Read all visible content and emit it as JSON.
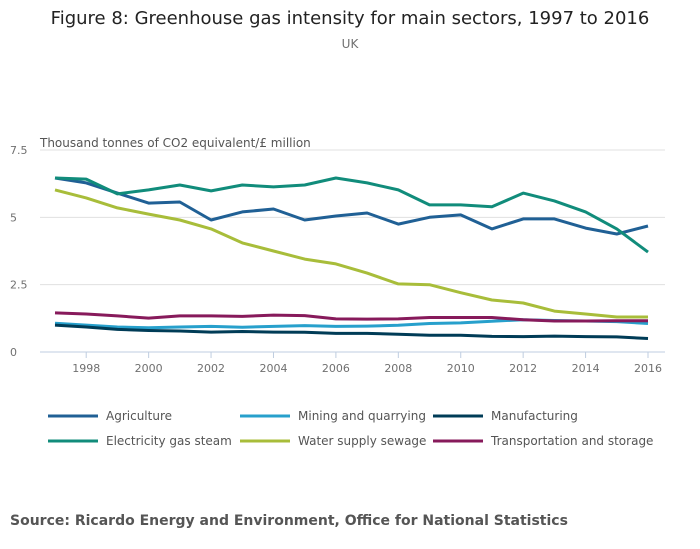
{
  "chart_data": {
    "type": "line",
    "title": "Figure 8: Greenhouse gas intensity for main sectors, 1997 to 2016",
    "subtitle": "UK",
    "ylabel": "Thousand tonnes of CO2 equivalent/£ million",
    "xlabel": "",
    "x": [
      1997,
      1998,
      1999,
      2000,
      2001,
      2002,
      2003,
      2004,
      2005,
      2006,
      2007,
      2008,
      2009,
      2010,
      2011,
      2012,
      2013,
      2014,
      2015,
      2016
    ],
    "xticks": [
      "1998",
      "2000",
      "2002",
      "2004",
      "2006",
      "2008",
      "2010",
      "2012",
      "2014",
      "2016"
    ],
    "yticks": [
      "0",
      "2.5",
      "5",
      "7.5"
    ],
    "ylim": [
      0,
      7.5
    ],
    "grid": true,
    "legend_position": "bottom",
    "series": [
      {
        "name": "Agriculture",
        "color": "#206095",
        "values": [
          6.46,
          6.28,
          5.9,
          5.53,
          5.57,
          4.9,
          5.2,
          5.31,
          4.9,
          5.05,
          5.16,
          4.75,
          5.0,
          5.09,
          4.57,
          4.94,
          4.94,
          4.6,
          4.38,
          4.68
        ]
      },
      {
        "name": "Mining and quarrying",
        "color": "#27a0cc",
        "values": [
          1.07,
          1.0,
          0.93,
          0.9,
          0.93,
          0.95,
          0.92,
          0.95,
          0.98,
          0.95,
          0.96,
          0.99,
          1.06,
          1.08,
          1.14,
          1.2,
          1.17,
          1.15,
          1.13,
          1.06
        ]
      },
      {
        "name": "Manufacturing",
        "color": "#003c57",
        "values": [
          1.0,
          0.93,
          0.84,
          0.8,
          0.78,
          0.74,
          0.76,
          0.74,
          0.73,
          0.69,
          0.69,
          0.66,
          0.62,
          0.62,
          0.58,
          0.57,
          0.59,
          0.57,
          0.56,
          0.5
        ]
      },
      {
        "name": "Electricity gas steam",
        "color": "#118c7b",
        "values": [
          6.46,
          6.42,
          5.87,
          6.02,
          6.2,
          5.98,
          6.2,
          6.13,
          6.2,
          6.46,
          6.28,
          6.02,
          5.46,
          5.46,
          5.39,
          5.9,
          5.61,
          5.2,
          4.57,
          3.71
        ]
      },
      {
        "name": "Water supply sewage",
        "color": "#a8bd3a",
        "values": [
          6.02,
          5.72,
          5.35,
          5.12,
          4.9,
          4.57,
          4.05,
          3.75,
          3.45,
          3.27,
          2.93,
          2.53,
          2.5,
          2.2,
          1.93,
          1.82,
          1.52,
          1.41,
          1.3,
          1.3
        ]
      },
      {
        "name": "Transportation and storage",
        "color": "#871a5b",
        "values": [
          1.45,
          1.41,
          1.34,
          1.26,
          1.34,
          1.34,
          1.32,
          1.37,
          1.35,
          1.23,
          1.22,
          1.23,
          1.28,
          1.28,
          1.28,
          1.2,
          1.15,
          1.15,
          1.16,
          1.16
        ]
      }
    ]
  },
  "source": "Source: Ricardo Energy and Environment, Office for National Statistics"
}
